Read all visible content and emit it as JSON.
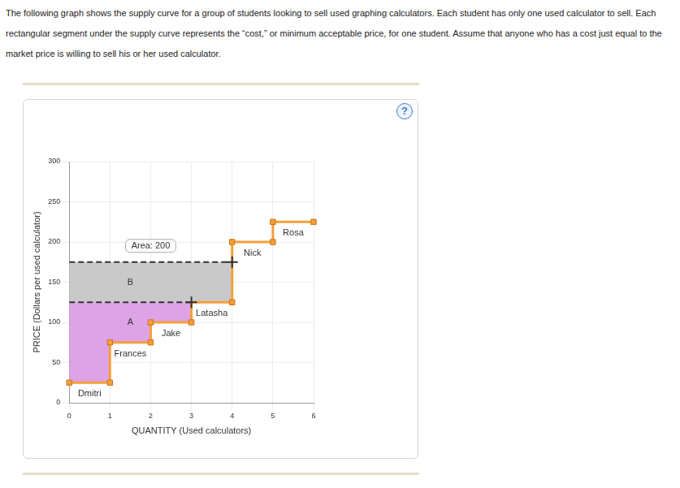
{
  "intro": "The following graph shows the supply curve for a group of students looking to sell used graphing calculators. Each student has only one used calculator to sell. Each rectangular segment under the supply curve represents the “cost,” or minimum acceptable price, for one student. Assume that anyone who has a cost just equal to the market price is willing to sell his or her used calculator.",
  "help": "?",
  "chart_data": {
    "type": "line",
    "x_label": "QUANTITY (Used calculators)",
    "y_label": "PRICE (Dollars per used calculator)",
    "xlim": [
      0,
      6
    ],
    "xticks": [
      0,
      1,
      2,
      3,
      4,
      5,
      6
    ],
    "ylim": [
      0,
      300
    ],
    "yticks": [
      0,
      50,
      100,
      150,
      200,
      250,
      300
    ],
    "grid": true,
    "supply": {
      "color": "#f5a038",
      "marker": "square",
      "students": [
        {
          "label": "Dmitri",
          "cost": 25
        },
        {
          "label": "Frances",
          "cost": 75
        },
        {
          "label": "Jake",
          "cost": 100
        },
        {
          "label": "Latasha",
          "cost": 125
        },
        {
          "label": "Nick",
          "cost": 200
        },
        {
          "label": "Rosa",
          "cost": 225
        }
      ]
    },
    "areas": [
      {
        "label": "A",
        "to_price": 125,
        "color": "#dda3e6",
        "line_style": "dashed"
      },
      {
        "label": "B",
        "from_price": 125,
        "to_price": 175,
        "color": "#c9c9c9",
        "line_style": "dashed",
        "annotation": "Area: 200"
      }
    ]
  }
}
